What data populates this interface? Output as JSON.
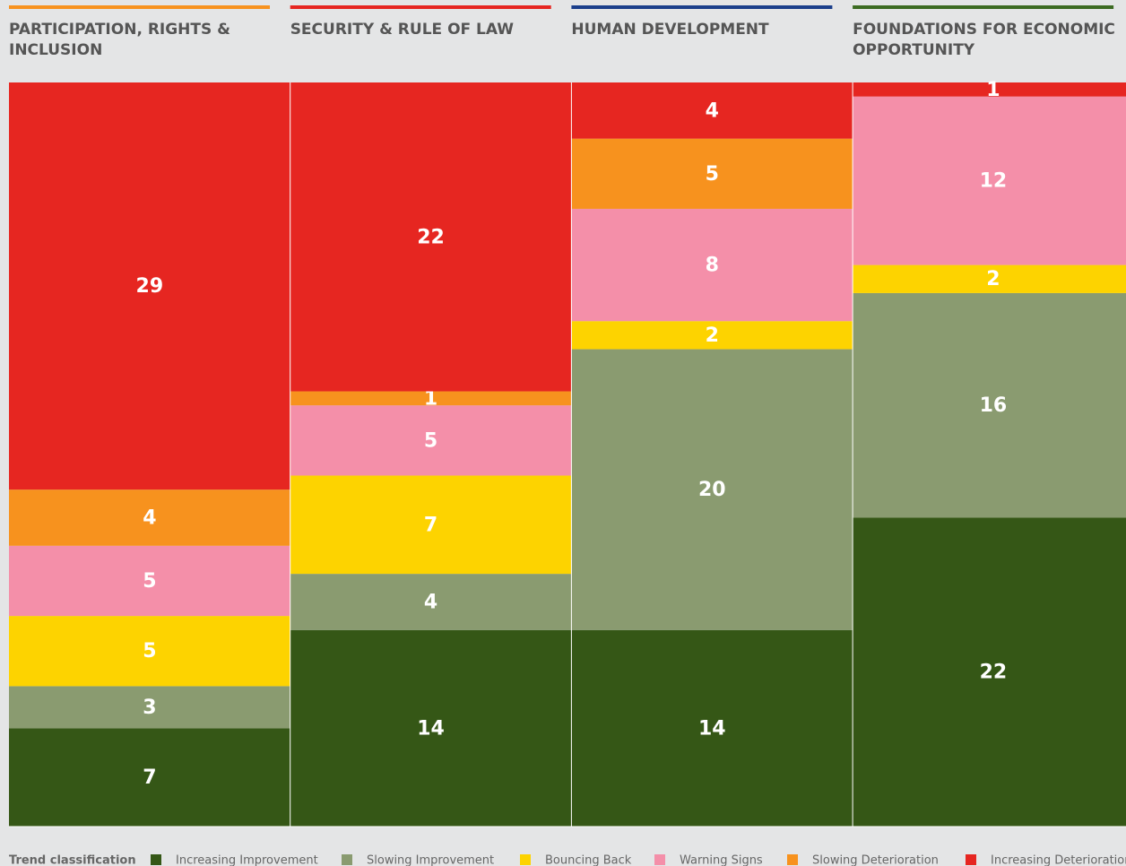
{
  "chart_data": {
    "type": "stacked_bar",
    "categories": [
      "PARTICIPATION, RIGHTS & INCLUSION",
      "SECURITY & RULE OF LAW",
      "HUMAN DEVELOPMENT",
      "FOUNDATIONS FOR ECONOMIC OPPORTUNITY"
    ],
    "category_colors": [
      "#f7921e",
      "#e62621",
      "#1b3f8b",
      "#3c6b22"
    ],
    "legend_title": "Trend classification",
    "series": [
      {
        "name": "Increasing Improvement",
        "color": "#355716",
        "values": [
          7,
          14,
          14,
          22
        ]
      },
      {
        "name": "Slowing Improvement",
        "color": "#8a9b70",
        "values": [
          3,
          4,
          20,
          16
        ]
      },
      {
        "name": "Bouncing Back",
        "color": "#fdd300",
        "values": [
          5,
          7,
          2,
          2
        ]
      },
      {
        "name": "Warning Signs",
        "color": "#f48fa9",
        "values": [
          5,
          5,
          8,
          12
        ]
      },
      {
        "name": "Slowing Deterioration",
        "color": "#f7921e",
        "values": [
          4,
          1,
          5,
          null
        ]
      },
      {
        "name": "Increasing Deterioration",
        "color": "#e62621",
        "values": [
          29,
          22,
          4,
          1
        ]
      }
    ]
  }
}
